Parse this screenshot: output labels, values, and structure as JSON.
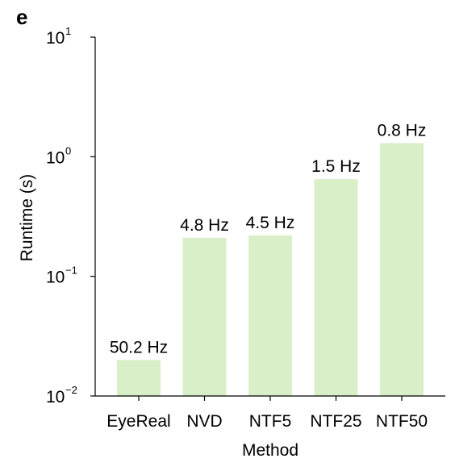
{
  "panel_label": "e",
  "chart_data": {
    "type": "bar",
    "scale": "log",
    "categories": [
      "EyeReal",
      "NVD",
      "NTF5",
      "NTF25",
      "NTF50"
    ],
    "values": [
      0.02,
      0.21,
      0.22,
      0.65,
      1.3
    ],
    "data_labels": [
      "50.2 Hz",
      "4.8 Hz",
      "4.5 Hz",
      "1.5 Hz",
      "0.8 Hz"
    ],
    "xlabel": "Method",
    "ylabel": "Runtime (s)",
    "ylim": [
      0.01,
      10
    ],
    "yticks": [
      {
        "value": 10,
        "base": "10",
        "exp": "1"
      },
      {
        "value": 1,
        "base": "10",
        "exp": "0"
      },
      {
        "value": 0.1,
        "base": "10",
        "exp": "−1"
      },
      {
        "value": 0.01,
        "base": "10",
        "exp": "−2"
      }
    ],
    "bar_color": "#d8efc8",
    "grid": false
  }
}
